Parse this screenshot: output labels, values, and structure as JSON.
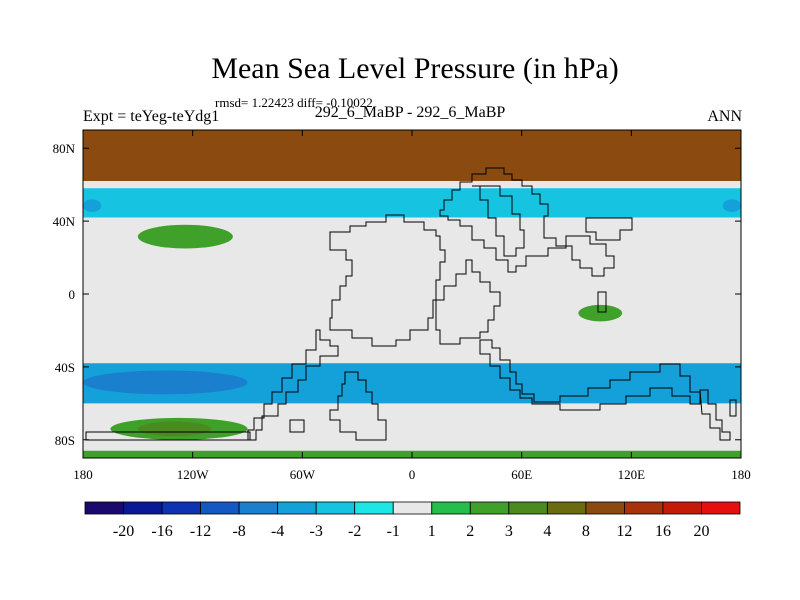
{
  "page": {
    "title": "Mean Sea Level Pressure (in hPa)",
    "stats": "rmsd= 1.22423 diff= -0.10022",
    "left_label": "Expt = teYeg-teYdg1",
    "center_label": "292_6_MaBP - 292_6_MaBP",
    "right_label": "ANN"
  },
  "chart_data": {
    "type": "heatmap",
    "title": "Mean Sea Level Pressure (in hPa)",
    "xlabel": "",
    "ylabel": "",
    "xlim": [
      -180,
      180
    ],
    "ylim": [
      -90,
      90
    ],
    "x_ticks": [
      {
        "value": -180,
        "label": "180"
      },
      {
        "value": -120,
        "label": "120W"
      },
      {
        "value": -60,
        "label": "60W"
      },
      {
        "value": 0,
        "label": "0"
      },
      {
        "value": 60,
        "label": "60E"
      },
      {
        "value": 120,
        "label": "120E"
      },
      {
        "value": 180,
        "label": "180"
      }
    ],
    "y_ticks": [
      {
        "value": 80,
        "label": "80N"
      },
      {
        "value": 40,
        "label": "40N"
      },
      {
        "value": 0,
        "label": "0"
      },
      {
        "value": -40,
        "label": "40S"
      },
      {
        "value": -80,
        "label": "80S"
      }
    ],
    "colorbar": {
      "labels": [
        "-20",
        "-16",
        "-12",
        "-8",
        "-4",
        "-3",
        "-2",
        "-1",
        "1",
        "2",
        "3",
        "4",
        "8",
        "12",
        "16",
        "20"
      ],
      "colors": [
        "#1a0a6e",
        "#0a1a96",
        "#0d33b3",
        "#1458c4",
        "#1a7fcc",
        "#14a0d8",
        "#16c4e2",
        "#1ee6e6",
        "#e8e8e8",
        "#23be4b",
        "#3fa02a",
        "#4a8a1e",
        "#6b6b10",
        "#8a4a10",
        "#a8320c",
        "#c41a08",
        "#e60f0f"
      ]
    },
    "regions": [
      {
        "name": "arctic-high",
        "level": "8",
        "lon": [
          -180,
          180
        ],
        "lat": [
          62,
          90
        ]
      },
      {
        "name": "n-cyan-band",
        "level": "-2",
        "lon": [
          -180,
          180
        ],
        "lat": [
          42,
          58
        ]
      },
      {
        "name": "n-pacific-low",
        "level": "-3",
        "lon": [
          -180,
          -170
        ],
        "lat": [
          45,
          52
        ]
      },
      {
        "name": "n-pacific-high-east",
        "level": "-3",
        "lon": [
          170,
          180
        ],
        "lat": [
          45,
          52
        ]
      },
      {
        "name": "n-pacific-green",
        "level": "2",
        "lon": [
          -150,
          -98
        ],
        "lat": [
          25,
          38
        ]
      },
      {
        "name": "indian-green",
        "level": "2",
        "lon": [
          91,
          115
        ],
        "lat": [
          -6,
          -15
        ]
      },
      {
        "name": "southern-ocean-low",
        "level": "-3",
        "lon": [
          -180,
          180
        ],
        "lat": [
          -60,
          -38
        ]
      },
      {
        "name": "southern-ocean-core",
        "level": "-4",
        "lon": [
          -180,
          -90
        ],
        "lat": [
          -55,
          -42
        ]
      },
      {
        "name": "s-pacific-high",
        "level": "2",
        "lon": [
          -165,
          -90
        ],
        "lat": [
          -68,
          -80
        ]
      },
      {
        "name": "s-pacific-core",
        "level": "3",
        "lon": [
          -150,
          -110
        ],
        "lat": [
          -70,
          -78
        ]
      },
      {
        "name": "antarctic-high",
        "level": "2",
        "lon": [
          -180,
          180
        ],
        "lat": [
          -86,
          -90
        ]
      }
    ]
  }
}
